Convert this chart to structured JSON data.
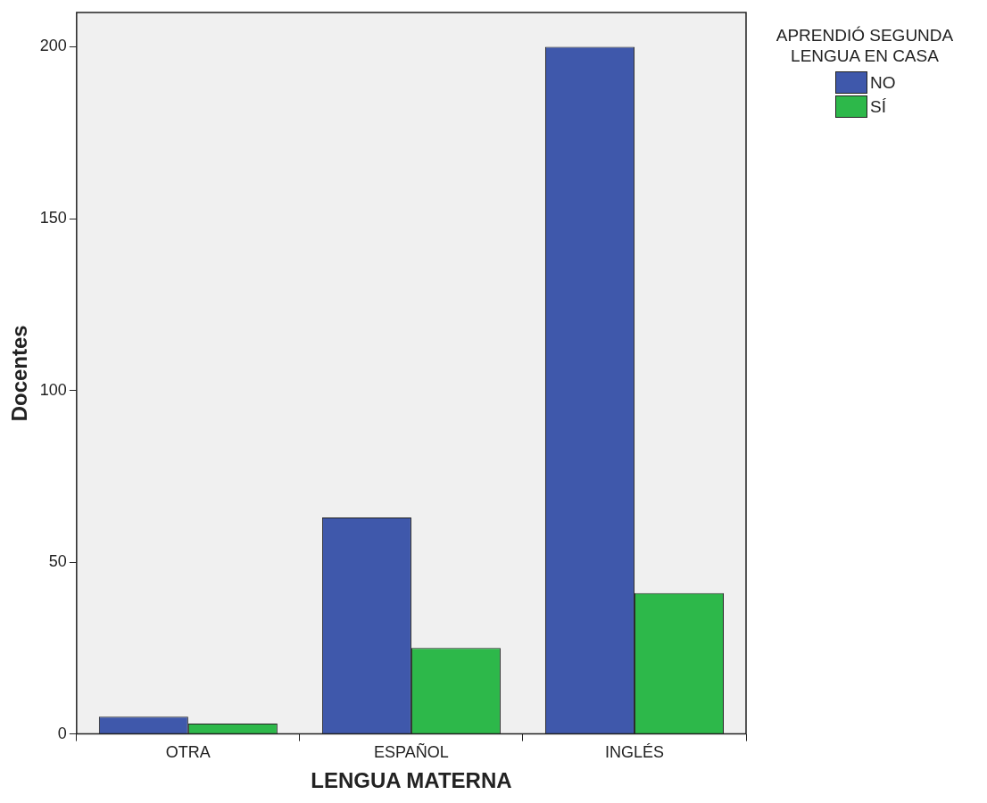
{
  "chart_data": {
    "type": "bar",
    "xlabel": "LENGUA MATERNA",
    "ylabel": "Docentes",
    "legend_title": "APRENDIÓ SEGUNDA LENGUA EN CASA",
    "legend": "right",
    "categories": [
      "OTRA",
      "ESPAÑOL",
      "INGLÉS"
    ],
    "series": [
      {
        "name": "NO",
        "color": "#3f58ab",
        "values": [
          5,
          63,
          200
        ]
      },
      {
        "name": "SÍ",
        "color": "#2db84a",
        "values": [
          3,
          25,
          41
        ]
      }
    ],
    "ylim": [
      0,
      210
    ],
    "yticks": [
      0,
      50,
      100,
      150,
      200
    ],
    "grid": false
  }
}
